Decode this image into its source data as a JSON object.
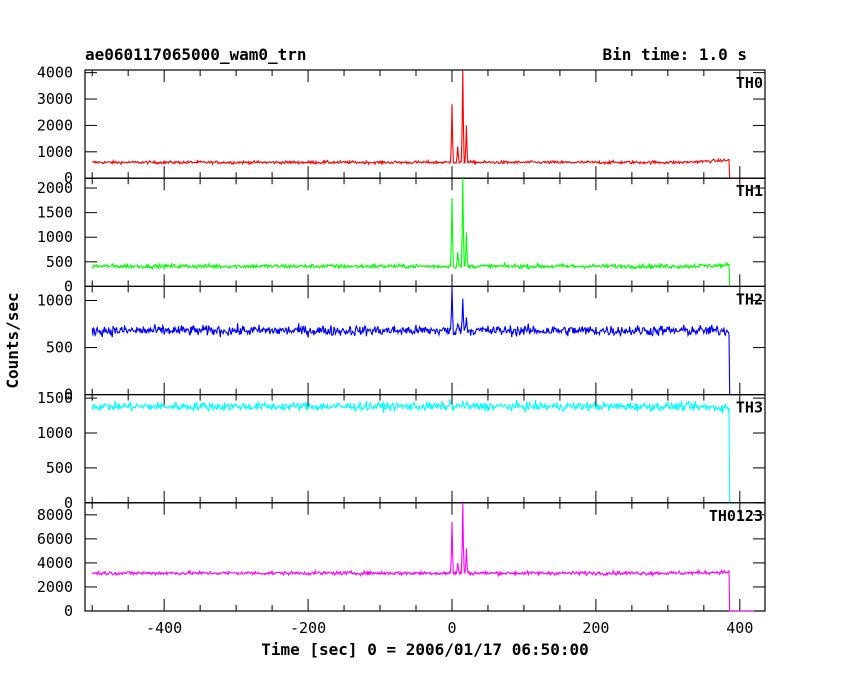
{
  "chart_data": {
    "type": "line",
    "title_left": "ae060117065000_wam0_trn",
    "title_right": "Bin time: 1.0 s",
    "xlabel": "Time [sec] 0 = 2006/01/17 06:50:00",
    "ylabel": "Counts/sec",
    "xlim": [
      -510,
      435
    ],
    "xticks": [
      -400,
      -200,
      0,
      200,
      400
    ],
    "panels": [
      {
        "name": "TH0",
        "color": "#ff0000",
        "ylim": [
          0,
          4100
        ],
        "yticks": [
          0,
          1000,
          2000,
          3000,
          4000
        ],
        "baseline": 600,
        "noise": 40,
        "tail": 680,
        "tail_start": 320,
        "spikes": [
          [
            0,
            2800
          ],
          [
            8,
            1200
          ],
          [
            15,
            4100
          ],
          [
            20,
            2000
          ]
        ]
      },
      {
        "name": "TH1",
        "color": "#00ff00",
        "ylim": [
          0,
          2200
        ],
        "yticks": [
          0,
          500,
          1000,
          1500,
          2000
        ],
        "baseline": 410,
        "noise": 30,
        "tail": 430,
        "tail_start": 320,
        "spikes": [
          [
            0,
            1800
          ],
          [
            8,
            700
          ],
          [
            15,
            2200
          ],
          [
            20,
            1100
          ]
        ]
      },
      {
        "name": "TH2",
        "color": "#0000ff",
        "ylim": [
          0,
          1150
        ],
        "yticks": [
          0,
          500,
          1000
        ],
        "baseline": 680,
        "noise": 40,
        "tail": 680,
        "tail_start": 320,
        "spikes": [
          [
            0,
            1150
          ],
          [
            8,
            750
          ],
          [
            15,
            1020
          ],
          [
            20,
            820
          ]
        ]
      },
      {
        "name": "TH3",
        "color": "#00ffff",
        "ylim": [
          0,
          1550
        ],
        "yticks": [
          0,
          500,
          1000,
          1500
        ],
        "baseline": 1380,
        "noise": 45,
        "tail": 1360,
        "tail_start": 320,
        "spikes": [
          [
            -3,
            1480
          ],
          [
            15,
            1460
          ]
        ]
      },
      {
        "name": "TH0123",
        "color": "#ff00ff",
        "ylim": [
          0,
          9000
        ],
        "yticks": [
          0,
          2000,
          4000,
          6000,
          8000
        ],
        "baseline": 3150,
        "noise": 110,
        "tail": 3250,
        "tail_start": 320,
        "spikes": [
          [
            0,
            7400
          ],
          [
            8,
            4000
          ],
          [
            15,
            9000
          ],
          [
            20,
            5200
          ]
        ]
      }
    ],
    "drop_time": 385,
    "end_time": 420
  }
}
